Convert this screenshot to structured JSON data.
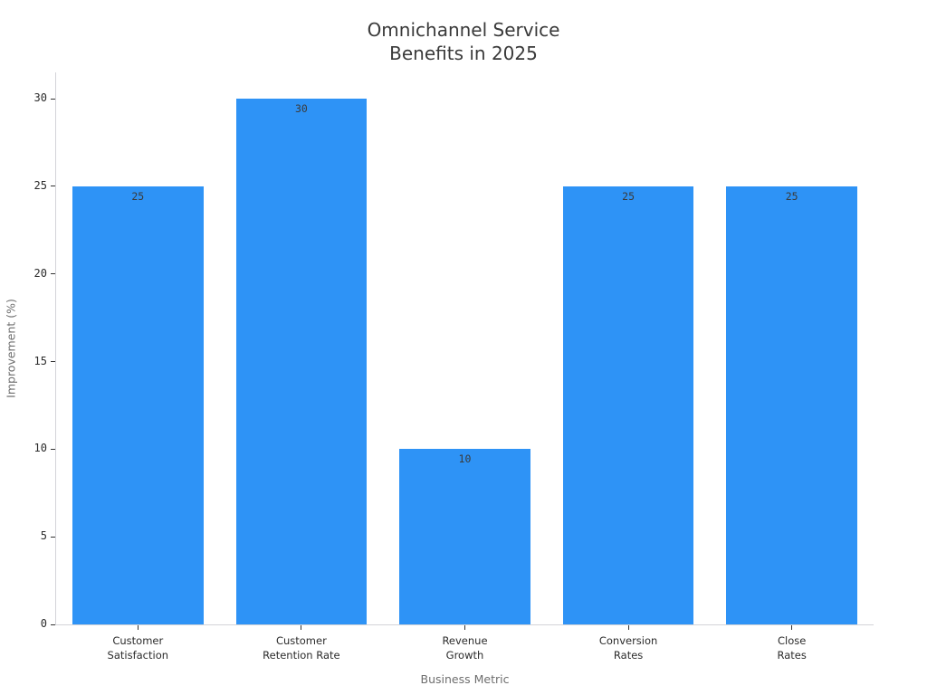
{
  "chart_data": {
    "type": "bar",
    "title": "Omnichannel Service\nBenefits in 2025",
    "xlabel": "Business Metric",
    "ylabel": "Improvement (%)",
    "categories": [
      "Customer\nSatisfaction",
      "Customer\nRetention Rate",
      "Revenue\nGrowth",
      "Conversion\nRates",
      "Close\nRates"
    ],
    "values": [
      25,
      30,
      10,
      25,
      25
    ],
    "bar_labels": [
      "25",
      "30",
      "10",
      "25",
      "25"
    ],
    "yticks": [
      0,
      5,
      10,
      15,
      20,
      25,
      30
    ],
    "ylim": [
      0,
      31.5
    ],
    "grid": "off",
    "legend": "none",
    "colors": {
      "bar": "#2E93F6",
      "title_text": "#3a3a3a",
      "tick_text": "#2b2b2b",
      "axis_label_text": "#6e6e6e",
      "value_label_text": "#3a3a3a",
      "spine": "#d4d4d8",
      "tick_mark": "#333333",
      "background": "#ffffff"
    }
  }
}
